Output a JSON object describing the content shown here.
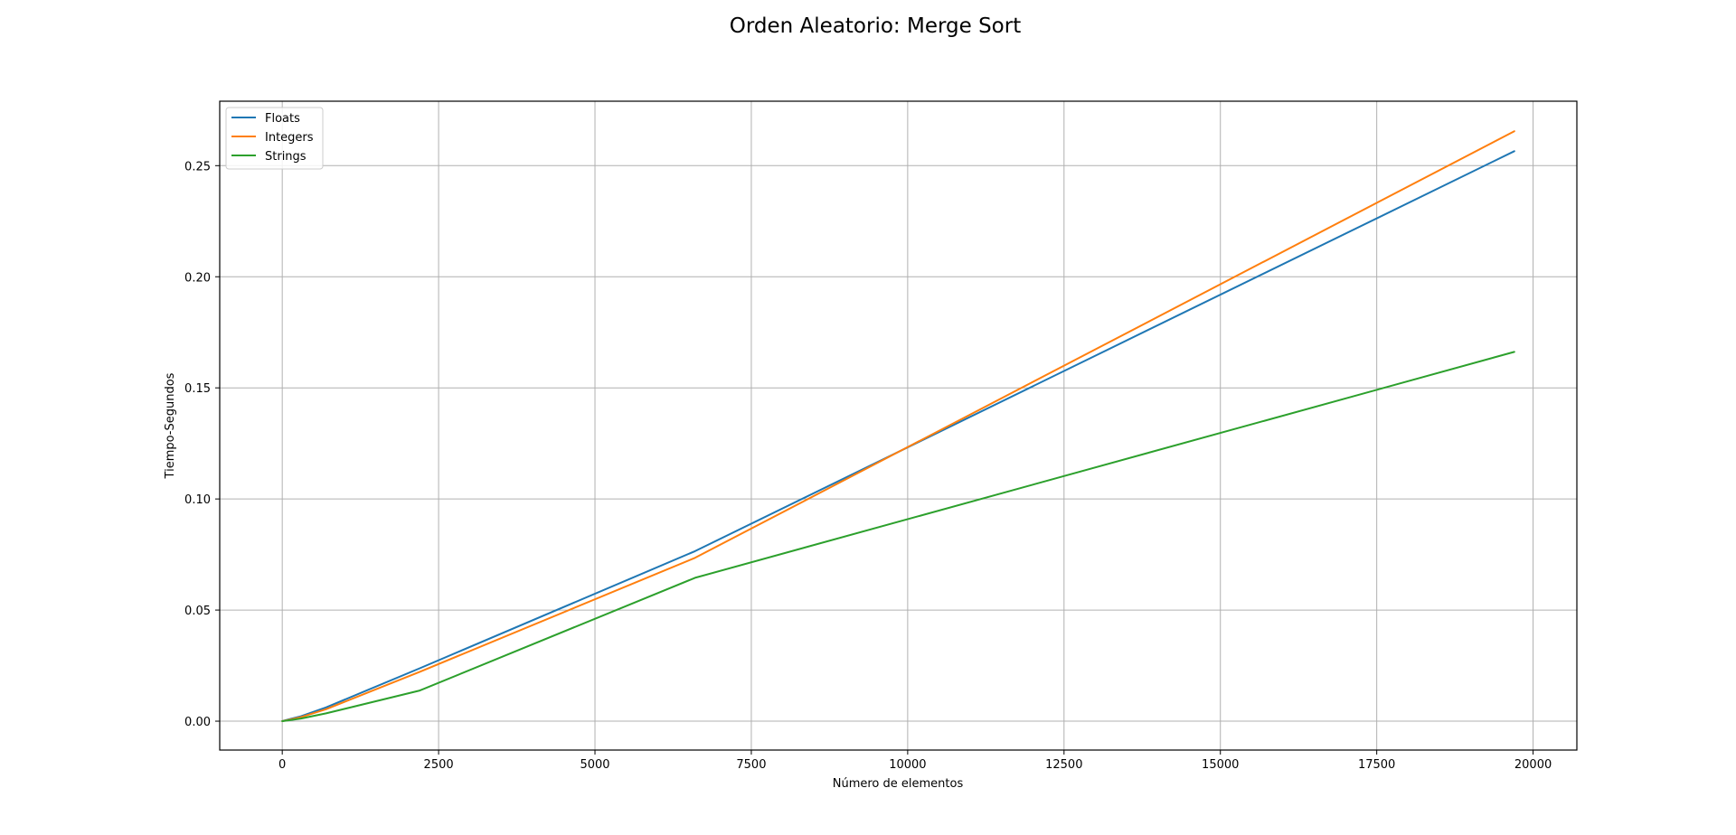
{
  "chart_data": {
    "type": "line",
    "title": "Orden Aleatorio: Merge Sort",
    "xlabel": "Número de elementos",
    "ylabel": "Tiempo-Segundos",
    "xlim": [
      -1000,
      20700
    ],
    "ylim": [
      -0.013,
      0.279
    ],
    "xticks": [
      0,
      2500,
      5000,
      7500,
      10000,
      12500,
      15000,
      17500,
      20000
    ],
    "yticks": [
      0.0,
      0.05,
      0.1,
      0.15,
      0.2,
      0.25
    ],
    "xtick_labels": [
      "0",
      "2500",
      "5000",
      "7500",
      "10000",
      "12500",
      "15000",
      "17500",
      "20000"
    ],
    "ytick_labels": [
      "0.00",
      "0.05",
      "0.10",
      "0.15",
      "0.20",
      "0.25"
    ],
    "grid": true,
    "legend_position": "top-left",
    "series": [
      {
        "name": "Floats",
        "color": "#1f77b4",
        "x": [
          0,
          100,
          300,
          700,
          2200,
          6600,
          19700
        ],
        "y": [
          0.0,
          0.0008,
          0.0022,
          0.0062,
          0.0238,
          0.0765,
          0.2565
        ]
      },
      {
        "name": "Integers",
        "color": "#ff7f0e",
        "x": [
          0,
          100,
          300,
          700,
          2200,
          6600,
          19700
        ],
        "y": [
          0.0,
          0.0006,
          0.0018,
          0.0054,
          0.0222,
          0.0735,
          0.2655
        ]
      },
      {
        "name": "Strings",
        "color": "#2ca02c",
        "x": [
          0,
          100,
          300,
          700,
          2200,
          6600,
          19700
        ],
        "y": [
          0.0,
          0.0004,
          0.0012,
          0.0035,
          0.0138,
          0.0645,
          0.1662
        ]
      }
    ]
  }
}
